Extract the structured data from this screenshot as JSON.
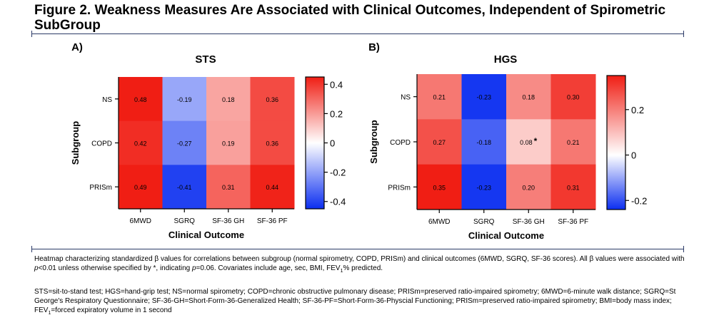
{
  "figure": {
    "title": "Figure 2. Weakness Measures Are Associated with Clinical Outcomes, Independent of Spirometric SubGroup"
  },
  "chart_data": [
    {
      "type": "heatmap",
      "panel_label": "A)",
      "title": "STS",
      "xlabel": "Clinical Outcome",
      "ylabel": "Subgroup",
      "x_categories": [
        "6MWD",
        "SGRQ",
        "SF-36 GH",
        "SF-36 PF"
      ],
      "y_categories": [
        "NS",
        "COPD",
        "PRISm"
      ],
      "values": [
        [
          0.48,
          -0.19,
          0.18,
          0.36
        ],
        [
          0.42,
          -0.27,
          0.19,
          0.36
        ],
        [
          0.49,
          -0.41,
          0.31,
          0.44
        ]
      ],
      "cell_labels": [
        [
          "0.48",
          "-0.19",
          "0.18",
          "0.36"
        ],
        [
          "0.42",
          "-0.27",
          "0.19",
          "0.36"
        ],
        [
          "0.49",
          "-0.41",
          "0.31",
          "0.44"
        ]
      ],
      "color_range": [
        -0.45,
        0.45
      ],
      "colorbar_ticks": [
        0.4,
        0.2,
        0,
        -0.2,
        -0.4
      ],
      "colorbar_tick_labels": [
        "0.4",
        "0.2",
        "0",
        "-0.2",
        "-0.4"
      ],
      "colors": {
        "negative": "#0b2ef0",
        "zero": "#ffffff",
        "positive": "#f01e14"
      }
    },
    {
      "type": "heatmap",
      "panel_label": "B)",
      "title": "HGS",
      "xlabel": "Clinical Outcome",
      "ylabel": "Subgroup",
      "x_categories": [
        "6MWD",
        "SGRQ",
        "SF-36 GH",
        "SF-36 PF"
      ],
      "y_categories": [
        "NS",
        "COPD",
        "PRISm"
      ],
      "values": [
        [
          0.21,
          -0.23,
          0.18,
          0.3
        ],
        [
          0.27,
          -0.18,
          0.08,
          0.21
        ],
        [
          0.35,
          -0.23,
          0.2,
          0.31
        ]
      ],
      "cell_labels": [
        [
          "0.21",
          "-0.23",
          "0.18",
          "0.30"
        ],
        [
          "0.27",
          "-0.18",
          "0.08",
          "0.21"
        ],
        [
          "0.35",
          "-0.23",
          "0.20",
          "0.31"
        ]
      ],
      "annotations": [
        {
          "row": 1,
          "col": 2,
          "text": "*"
        }
      ],
      "color_range": [
        -0.24,
        0.35
      ],
      "colorbar_ticks": [
        0.2,
        0,
        -0.2
      ],
      "colorbar_tick_labels": [
        "0.2",
        "0",
        "-0.2"
      ],
      "colors": {
        "negative": "#0b2ef0",
        "zero": "#ffffff",
        "positive": "#f01e14"
      }
    }
  ],
  "caption": {
    "line1_a": "Heatmap characterizing standardized β values for correlations between subgroup (normal spirometry, COPD, PRISm) and clinical outcomes (6MWD, SGRQ, SF-36 scores). All β values were associated with ",
    "line1_p": "p",
    "line1_b": "<0.01 unless otherwise specified by *, indicating ",
    "line1_p2": "p",
    "line1_c": "=0.06. Covariates include age, sec, BMI, FEV",
    "line1_sub": "1",
    "line1_d": "% predicted.",
    "line2_a": "STS=sit-to-stand test; HGS=hand-grip test; NS=normal spirometry; COPD=chronic obstructive pulmonary disease; PRISm=preserved ratio-impaired spirometry; 6MWD=6-minute walk distance; SGRQ=St George's Respiratory Questionnaire; SF-36-GH=Short-Form-36-Generalized Health; SF-36-PF=Short-Form-36-Physcial Functioning; PRISm=preserved ratio-impaired spirometry; BMI=body mass index; FEV",
    "line2_sub": "1",
    "line2_b": "=forced expiratory volume in 1 second"
  }
}
